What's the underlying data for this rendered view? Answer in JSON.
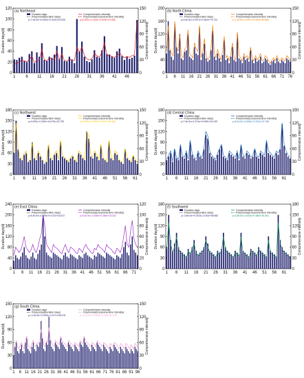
{
  "figure": {
    "y_left_label": "Duration days(d)",
    "y_right_label": "Comprehensive intensity",
    "legend": {
      "bars": "Duration days",
      "intensity": "Comprehensive intensity",
      "poly_days": "Polynomial(Duration days)",
      "poly_intensity": "Polynomial(Comprehensive intensity)"
    },
    "colors": {
      "bar": "#1f1f6e",
      "days_trend": "#111111"
    }
  },
  "chart_data": [
    {
      "id": "a",
      "type": "bar",
      "title": "(a) Northeast",
      "n": 50,
      "x_ticks": [
        1,
        6,
        11,
        16,
        21,
        26,
        31,
        36,
        41,
        46
      ],
      "ylim": [
        0,
        120
      ],
      "y_ticks": [
        0,
        20,
        40,
        60,
        80,
        100,
        120
      ],
      "ylim_right": [
        0,
        150
      ],
      "y_right_ticks": [
        0,
        30,
        60,
        90,
        120,
        150
      ],
      "line_color": "#e0151b",
      "eq_days": "y=7.0e-5x³+0.002x²+0.420x+23.525",
      "eq_intensity": "y=0.002x³-0.114x²+2.023x+21.836",
      "values": [
        25,
        24,
        28,
        30,
        22,
        20,
        35,
        40,
        18,
        38,
        30,
        55,
        24,
        22,
        30,
        28,
        34,
        50,
        26,
        48,
        22,
        21,
        30,
        25,
        18,
        100,
        40,
        58,
        30,
        22,
        20,
        25,
        42,
        30,
        28,
        42,
        68,
        35,
        34,
        30,
        28,
        40,
        45,
        31,
        24,
        30,
        26,
        28,
        32,
        98
      ],
      "intensity": [
        20,
        22,
        25,
        30,
        28,
        26,
        30,
        40,
        24,
        28,
        30,
        55,
        30,
        28,
        35,
        32,
        30,
        50,
        30,
        45,
        28,
        27,
        32,
        30,
        28,
        60,
        48,
        60,
        40,
        32,
        30,
        33,
        45,
        40,
        36,
        48,
        70,
        42,
        40,
        38,
        36,
        40,
        46,
        40,
        35,
        38,
        36,
        40,
        42,
        120
      ]
    },
    {
      "id": "b",
      "type": "bar",
      "title": "(b) North China",
      "n": 76,
      "x_ticks": [
        1,
        6,
        11,
        16,
        21,
        26,
        31,
        36,
        41,
        46,
        51,
        56,
        61,
        66,
        71,
        76
      ],
      "ylim": [
        0,
        200
      ],
      "y_ticks": [
        0,
        40,
        80,
        120,
        160,
        200
      ],
      "ylim_right": [
        0,
        150
      ],
      "y_right_ticks": [
        0,
        30,
        60,
        90,
        120,
        150
      ],
      "line_color": "#f07c0b",
      "eq_days": "y=9.4e-5x³-0.007x²+0.062x+75.724",
      "eq_intensity": "y=7.6e-5x³-0.007x²+0.066x+60.889",
      "values": [
        60,
        160,
        70,
        50,
        40,
        150,
        80,
        60,
        120,
        45,
        40,
        65,
        70,
        120,
        50,
        45,
        40,
        80,
        60,
        55,
        140,
        40,
        60,
        90,
        45,
        35,
        40,
        70,
        130,
        50,
        40,
        60,
        45,
        35,
        55,
        100,
        40,
        45,
        30,
        50,
        80,
        40,
        35,
        120,
        45,
        40,
        30,
        50,
        40,
        45,
        35,
        70,
        40,
        30,
        45,
        35,
        40,
        50,
        30,
        35,
        45,
        40,
        30,
        25,
        35,
        40,
        30,
        45,
        35,
        30,
        40,
        35,
        30,
        45,
        40,
        35
      ],
      "intensity": [
        50,
        110,
        55,
        45,
        40,
        120,
        60,
        50,
        90,
        40,
        35,
        55,
        60,
        100,
        45,
        40,
        35,
        70,
        55,
        50,
        110,
        35,
        50,
        80,
        40,
        30,
        35,
        60,
        110,
        45,
        35,
        55,
        40,
        30,
        50,
        85,
        35,
        40,
        28,
        45,
        70,
        35,
        30,
        95,
        40,
        35,
        28,
        45,
        35,
        40,
        30,
        60,
        35,
        28,
        40,
        30,
        35,
        45,
        28,
        30,
        40,
        35,
        28,
        22,
        30,
        35,
        28,
        40,
        30,
        28,
        35,
        30,
        28,
        40,
        35,
        30
      ]
    },
    {
      "id": "c",
      "type": "bar",
      "title": "(c) Northwest",
      "n": 62,
      "x_ticks": [
        1,
        6,
        11,
        16,
        21,
        26,
        31,
        36,
        41,
        46,
        51,
        56,
        61
      ],
      "ylim": [
        0,
        180
      ],
      "y_ticks": [
        0,
        30,
        60,
        90,
        120,
        150,
        180
      ],
      "ylim_right": [
        0,
        150
      ],
      "y_right_ticks": [
        0,
        30,
        60,
        90,
        120,
        150
      ],
      "line_color": "#f5c400",
      "eq_days": "y=0.003x³-0.262x²+5.675x+42.709",
      "eq_intensity": "y=0.002x³-0.209x²+4.437x+35.466",
      "values": [
        60,
        150,
        70,
        45,
        40,
        55,
        60,
        35,
        40,
        90,
        45,
        40,
        60,
        50,
        40,
        30,
        35,
        80,
        45,
        40,
        55,
        60,
        40,
        90,
        50,
        45,
        40,
        35,
        45,
        50,
        40,
        35,
        60,
        55,
        45,
        40,
        120,
        100,
        50,
        45,
        60,
        50,
        40,
        80,
        45,
        40,
        35,
        90,
        45,
        40,
        60,
        55,
        40,
        35,
        30,
        70,
        45,
        40,
        35,
        50,
        40,
        30
      ],
      "intensity": [
        50,
        120,
        60,
        40,
        35,
        50,
        55,
        30,
        35,
        75,
        40,
        35,
        55,
        45,
        35,
        28,
        30,
        70,
        40,
        35,
        50,
        55,
        35,
        80,
        45,
        40,
        35,
        30,
        40,
        45,
        35,
        30,
        55,
        50,
        40,
        35,
        100,
        90,
        45,
        40,
        55,
        45,
        35,
        70,
        40,
        35,
        30,
        80,
        40,
        35,
        55,
        50,
        35,
        30,
        28,
        60,
        40,
        35,
        30,
        45,
        35,
        28
      ]
    },
    {
      "id": "d",
      "type": "bar",
      "title": "(d) Central China",
      "n": 64,
      "x_ticks": [
        1,
        6,
        11,
        16,
        21,
        26,
        31,
        36,
        41,
        46,
        51,
        56,
        61
      ],
      "ylim": [
        0,
        180
      ],
      "y_ticks": [
        0,
        30,
        60,
        90,
        120,
        150,
        180
      ],
      "ylim_right": [
        0,
        150
      ],
      "y_right_ticks": [
        0,
        30,
        60,
        90,
        120,
        150
      ],
      "line_color": "#1f72b8",
      "eq_days": "y=7.6e-5x³-0.074x²+0.095x+51.240",
      "eq_intensity": "y=8.2e-5x³-0.063x²+1.224x+37.138",
      "values": [
        40,
        50,
        60,
        35,
        70,
        45,
        40,
        80,
        50,
        45,
        60,
        40,
        90,
        55,
        45,
        40,
        60,
        50,
        45,
        70,
        110,
        100,
        60,
        50,
        45,
        40,
        55,
        70,
        80,
        50,
        45,
        40,
        60,
        55,
        50,
        45,
        60,
        40,
        80,
        50,
        45,
        60,
        55,
        45,
        50,
        70,
        50,
        45,
        60,
        55,
        50,
        90,
        60,
        55,
        50,
        45,
        60,
        55,
        70,
        140,
        80,
        60,
        50,
        45
      ],
      "intensity": [
        35,
        45,
        55,
        30,
        60,
        40,
        35,
        70,
        45,
        40,
        55,
        35,
        80,
        50,
        40,
        35,
        55,
        45,
        40,
        60,
        100,
        90,
        55,
        45,
        40,
        35,
        50,
        60,
        70,
        45,
        40,
        35,
        55,
        50,
        45,
        40,
        55,
        35,
        70,
        45,
        40,
        55,
        50,
        40,
        45,
        60,
        45,
        40,
        55,
        50,
        45,
        80,
        55,
        50,
        45,
        40,
        55,
        50,
        60,
        120,
        70,
        55,
        45,
        40
      ]
    },
    {
      "id": "e",
      "type": "bar",
      "title": "(e) East China",
      "n": 73,
      "x_ticks": [
        1,
        6,
        11,
        16,
        21,
        26,
        31,
        36,
        41,
        46,
        51,
        56,
        61,
        66,
        71
      ],
      "ylim": [
        0,
        240
      ],
      "y_ticks": [
        0,
        40,
        80,
        120,
        160,
        200,
        240
      ],
      "ylim_right": [
        0,
        120
      ],
      "y_right_ticks": [
        0,
        20,
        40,
        60,
        80,
        100,
        120
      ],
      "line_color": "#9b2bbf",
      "eq_days": "y=6.4e-5x³-0.009x²+0.472x+24.672",
      "eq_intensity": "y=5.4e-5x³-0.006x²+0.286x+32.322",
      "values": [
        30,
        50,
        40,
        35,
        45,
        60,
        80,
        50,
        40,
        35,
        45,
        60,
        40,
        35,
        55,
        70,
        90,
        190,
        120,
        60,
        50,
        45,
        40,
        60,
        55,
        50,
        45,
        40,
        35,
        50,
        60,
        45,
        40,
        55,
        50,
        45,
        40,
        35,
        50,
        45,
        40,
        55,
        60,
        50,
        45,
        40,
        35,
        50,
        45,
        60,
        55,
        50,
        45,
        40,
        60,
        55,
        50,
        45,
        40,
        35,
        50,
        45,
        40,
        55,
        80,
        100,
        60,
        50,
        90,
        120,
        70,
        60,
        50
      ],
      "intensity": [
        25,
        40,
        35,
        30,
        35,
        45,
        60,
        40,
        35,
        30,
        35,
        45,
        35,
        30,
        40,
        55,
        65,
        100,
        80,
        45,
        40,
        35,
        30,
        45,
        40,
        38,
        35,
        30,
        28,
        38,
        45,
        35,
        30,
        40,
        38,
        35,
        30,
        28,
        38,
        35,
        30,
        40,
        45,
        38,
        35,
        30,
        28,
        38,
        35,
        45,
        40,
        38,
        35,
        30,
        45,
        40,
        38,
        35,
        30,
        28,
        38,
        35,
        30,
        40,
        60,
        80,
        45,
        40,
        70,
        90,
        55,
        45,
        40
      ]
    },
    {
      "id": "f",
      "type": "bar",
      "title": "(f) Southwest",
      "n": 64,
      "x_ticks": [
        1,
        6,
        11,
        16,
        21,
        26,
        31,
        36,
        41,
        46,
        51,
        56,
        61
      ],
      "ylim": [
        0,
        180
      ],
      "y_ticks": [
        0,
        30,
        60,
        90,
        120,
        150,
        180
      ],
      "ylim_right": [
        0,
        180
      ],
      "y_right_ticks": [
        0,
        30,
        60,
        90,
        120,
        150,
        180
      ],
      "line_color": "#1a8f5a",
      "eq_days": "y=-3.6e-5x³+0.003x²-0.034x+55.982",
      "eq_intensity": "y=3.5e-5x³-0.003x²+0.480x+51.841",
      "values": [
        60,
        150,
        80,
        50,
        70,
        100,
        60,
        50,
        45,
        40,
        35,
        55,
        45,
        60,
        80,
        50,
        40,
        45,
        50,
        60,
        90,
        70,
        50,
        45,
        40,
        35,
        50,
        45,
        55,
        100,
        60,
        50,
        45,
        40,
        35,
        50,
        45,
        40,
        100,
        50,
        45,
        40,
        35,
        55,
        50,
        45,
        40,
        60,
        50,
        45,
        40,
        35,
        90,
        50,
        45,
        40,
        35,
        150,
        80,
        60,
        50,
        45,
        40,
        35
      ],
      "intensity": [
        55,
        130,
        70,
        45,
        60,
        90,
        55,
        45,
        40,
        35,
        30,
        50,
        40,
        55,
        70,
        45,
        35,
        40,
        45,
        55,
        80,
        60,
        45,
        40,
        35,
        30,
        45,
        40,
        50,
        90,
        55,
        45,
        40,
        35,
        30,
        45,
        40,
        35,
        90,
        45,
        40,
        35,
        30,
        50,
        45,
        40,
        35,
        55,
        45,
        40,
        35,
        30,
        80,
        45,
        40,
        35,
        30,
        130,
        70,
        55,
        45,
        40,
        35,
        30
      ]
    },
    {
      "id": "g",
      "type": "bar",
      "title": "(g) South China",
      "n": 96,
      "x_ticks": [
        1,
        6,
        11,
        16,
        21,
        26,
        31,
        36,
        41,
        46,
        51,
        56,
        61,
        66,
        71,
        76,
        81,
        86,
        91,
        96
      ],
      "ylim": [
        0,
        150
      ],
      "y_ticks": [
        0,
        30,
        60,
        90,
        120,
        150
      ],
      "ylim_right": [
        0,
        150
      ],
      "y_right_ticks": [
        0,
        30,
        60,
        90,
        120,
        150
      ],
      "line_color": "#f09ad1",
      "eq_days": "y=-4.2e-5x³+0.005x²-0.317x+56.478",
      "eq_intensity": "y=-4.7e-5x³+0.006x²-0.226x+57.219",
      "values": [
        30,
        50,
        60,
        40,
        35,
        45,
        55,
        40,
        35,
        60,
        70,
        45,
        40,
        35,
        50,
        60,
        45,
        40,
        55,
        50,
        60,
        110,
        70,
        45,
        40,
        60,
        55,
        120,
        65,
        50,
        45,
        40,
        60,
        55,
        50,
        45,
        70,
        60,
        55,
        50,
        45,
        40,
        60,
        55,
        50,
        45,
        40,
        55,
        50,
        45,
        40,
        60,
        55,
        50,
        70,
        60,
        55,
        50,
        45,
        40,
        55,
        50,
        45,
        40,
        60,
        55,
        50,
        45,
        40,
        55,
        50,
        45,
        40,
        35,
        50,
        45,
        40,
        55,
        50,
        45,
        40,
        35,
        50,
        45,
        40,
        35,
        50,
        45,
        40,
        35,
        45,
        40,
        35,
        50,
        45,
        40
      ],
      "intensity": [
        40,
        55,
        65,
        50,
        45,
        55,
        60,
        50,
        45,
        65,
        75,
        55,
        50,
        45,
        60,
        65,
        55,
        50,
        60,
        58,
        65,
        90,
        75,
        55,
        50,
        65,
        60,
        95,
        70,
        58,
        55,
        50,
        65,
        60,
        58,
        55,
        75,
        65,
        60,
        58,
        55,
        50,
        65,
        60,
        58,
        55,
        50,
        60,
        58,
        55,
        50,
        65,
        60,
        58,
        75,
        65,
        60,
        58,
        55,
        50,
        60,
        58,
        55,
        50,
        65,
        60,
        58,
        55,
        50,
        60,
        58,
        55,
        50,
        45,
        58,
        55,
        50,
        60,
        58,
        55,
        50,
        45,
        58,
        55,
        50,
        45,
        58,
        55,
        50,
        45,
        55,
        50,
        45,
        58,
        55,
        50
      ]
    }
  ]
}
